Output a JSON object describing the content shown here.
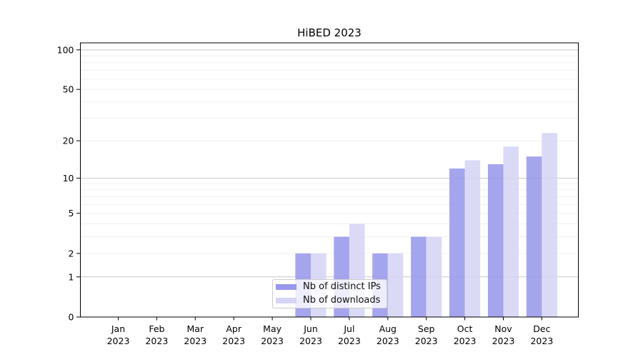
{
  "chart_data": {
    "type": "bar",
    "title": "HiBED 2023",
    "categories": [
      "Jan 2023",
      "Feb 2023",
      "Mar 2023",
      "Apr 2023",
      "May 2023",
      "Jun 2023",
      "Jul 2023",
      "Aug 2023",
      "Sep 2023",
      "Oct 2023",
      "Nov 2023",
      "Dec 2023"
    ],
    "series": [
      {
        "name": "Nb of distinct IPs",
        "color": "#9898ec",
        "values": [
          0,
          0,
          0,
          0,
          0,
          2,
          3,
          2,
          3,
          12,
          13,
          15
        ]
      },
      {
        "name": "Nb of downloads",
        "color": "#d5d5f6",
        "values": [
          0,
          0,
          0,
          0,
          0,
          2,
          4,
          2,
          3,
          14,
          18,
          23
        ]
      }
    ],
    "xlabel": "",
    "ylabel": "",
    "yscale": "log1p",
    "yticks": [
      0,
      1,
      2,
      5,
      10,
      20,
      50,
      100
    ],
    "ylim": [
      0,
      113
    ],
    "grid": "both",
    "grid_minor_values": [
      2,
      3,
      4,
      5,
      6,
      7,
      8,
      9,
      20,
      30,
      40,
      50,
      60,
      70,
      80,
      90
    ],
    "grid_major_values": [
      1,
      10,
      100
    ],
    "grid_minor_color": "#f0f0f0",
    "grid_major_color": "#c9c9c9",
    "axis_color": "#000000",
    "legend_position": "lower center"
  }
}
